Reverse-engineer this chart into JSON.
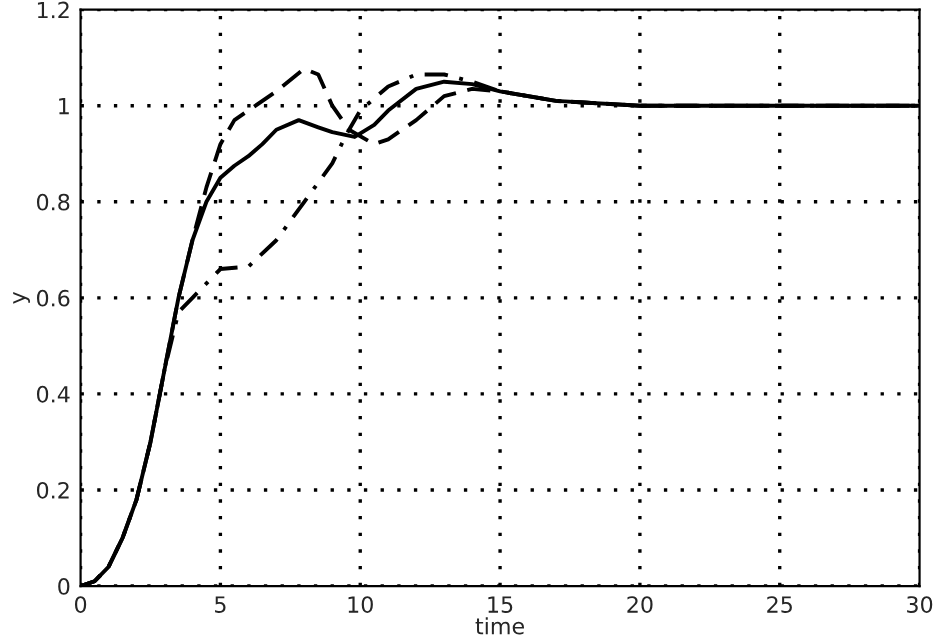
{
  "chart_data": {
    "type": "line",
    "xlabel": "time",
    "ylabel": "y",
    "xlim": [
      0,
      30
    ],
    "xticks": [
      0,
      5,
      10,
      15,
      20,
      25,
      30
    ],
    "ylim": [
      0,
      1.2
    ],
    "yticks": [
      0,
      0.2,
      0.4,
      0.6,
      0.8,
      1,
      1.2
    ],
    "grid": true,
    "legend": false,
    "series": [
      {
        "color": "#000000",
        "line_style": "solid",
        "x": [
          0,
          0.5,
          1,
          1.5,
          2,
          2.5,
          3,
          3.5,
          4,
          4.5,
          5,
          5.5,
          6,
          6.5,
          7,
          7.8,
          8.5,
          9,
          9.8,
          10.5,
          11,
          12,
          13,
          14,
          15,
          17,
          20,
          30
        ],
        "values": [
          0,
          0.01,
          0.04,
          0.1,
          0.18,
          0.3,
          0.45,
          0.6,
          0.72,
          0.8,
          0.85,
          0.875,
          0.895,
          0.92,
          0.95,
          0.97,
          0.955,
          0.945,
          0.935,
          0.96,
          0.99,
          1.035,
          1.05,
          1.045,
          1.03,
          1.01,
          1.0,
          1.0
        ]
      },
      {
        "color": "#000000",
        "line_style": "dashed",
        "x": [
          0,
          0.5,
          1,
          1.5,
          2,
          2.5,
          3,
          3.5,
          4,
          4.5,
          5,
          5.5,
          6,
          7,
          8,
          8.5,
          9,
          9.6,
          10.5,
          11,
          12,
          13,
          14,
          15,
          17,
          20,
          30
        ],
        "values": [
          0,
          0.01,
          0.04,
          0.1,
          0.18,
          0.3,
          0.45,
          0.6,
          0.72,
          0.83,
          0.92,
          0.97,
          0.99,
          1.03,
          1.077,
          1.065,
          1.0,
          0.95,
          0.92,
          0.93,
          0.97,
          1.02,
          1.035,
          1.03,
          1.01,
          1.0,
          1.0
        ]
      },
      {
        "color": "#000000",
        "line_style": "dashdot",
        "x": [
          0,
          0.5,
          1,
          1.5,
          2,
          2.5,
          3,
          3.5,
          4,
          4.5,
          5,
          6,
          7,
          8,
          9,
          9.5,
          10,
          11,
          12,
          13,
          14,
          15,
          17,
          20,
          30
        ],
        "values": [
          0,
          0.01,
          0.04,
          0.1,
          0.18,
          0.3,
          0.45,
          0.57,
          0.6,
          0.63,
          0.66,
          0.665,
          0.72,
          0.8,
          0.88,
          0.94,
          0.99,
          1.04,
          1.065,
          1.065,
          1.05,
          1.03,
          1.01,
          1.0,
          1.0
        ]
      }
    ]
  }
}
